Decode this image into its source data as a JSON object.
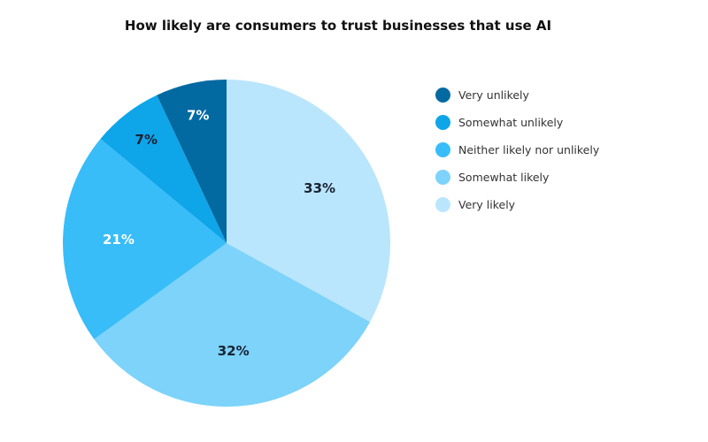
{
  "chart_data": {
    "type": "pie",
    "title": "How likely are consumers to trust businesses that use AI",
    "legend_position": "right",
    "slices": [
      {
        "name": "Very likely",
        "value": 33,
        "label": "33%",
        "color": "#BAE6FD",
        "label_color": "#1A2233"
      },
      {
        "name": "Somewhat likely",
        "value": 32,
        "label": "32%",
        "color": "#7DD3FA",
        "label_color": "#1A2233"
      },
      {
        "name": "Neither likely nor unlikely",
        "value": 21,
        "label": "21%",
        "color": "#38BDF8",
        "label_color": "#FFFFFF"
      },
      {
        "name": "Somewhat unlikely",
        "value": 7,
        "label": "7%",
        "color": "#0EA5E9",
        "label_color": "#1A2233"
      },
      {
        "name": "Very unlikely",
        "value": 7,
        "label": "7%",
        "color": "#0369A1",
        "label_color": "#FFFFFF"
      }
    ],
    "legend": [
      {
        "name": "Very unlikely",
        "color": "#0369A1"
      },
      {
        "name": "Somewhat unlikely",
        "color": "#0EA5E9"
      },
      {
        "name": "Neither likely nor unlikely",
        "color": "#38BDF8"
      },
      {
        "name": "Somewhat likely",
        "color": "#7DD3FA"
      },
      {
        "name": "Very likely",
        "color": "#BAE6FD"
      }
    ]
  }
}
